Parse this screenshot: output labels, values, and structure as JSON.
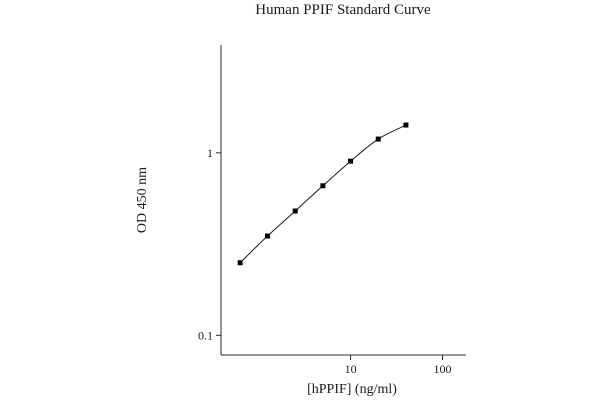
{
  "chart_data": {
    "type": "line",
    "title": "Human PPIF Standard Curve",
    "xlabel": "[hPPIF] (ng/ml)",
    "ylabel": "OD 450 nm",
    "x_scale": "log",
    "y_scale": "log",
    "xlim": [
      0.39,
      180
    ],
    "ylim": [
      0.078,
      3.9
    ],
    "x_ticks": [
      {
        "value": 10,
        "label": "10"
      },
      {
        "value": 100,
        "label": "100"
      }
    ],
    "y_ticks": [
      {
        "value": 0.1,
        "label": "0.1"
      },
      {
        "value": 1,
        "label": "1"
      }
    ],
    "grid": false,
    "series": [
      {
        "x": [
          0.63,
          1.25,
          2.5,
          5,
          10,
          20,
          40
        ],
        "y": [
          0.25,
          0.35,
          0.48,
          0.66,
          0.9,
          1.19,
          1.42
        ]
      }
    ]
  }
}
